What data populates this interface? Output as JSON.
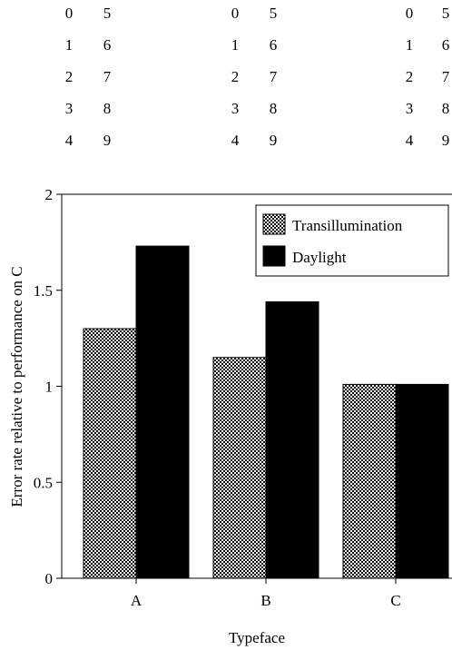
{
  "digit_samples": {
    "left_column": [
      "0",
      "1",
      "2",
      "3",
      "4"
    ],
    "right_column": [
      "5",
      "6",
      "7",
      "8",
      "9"
    ],
    "repeat_count": 3
  },
  "chart_data": {
    "type": "bar",
    "title": "",
    "xlabel": "Typeface",
    "ylabel": "Error rate relative to performance on C",
    "categories": [
      "A",
      "B",
      "C"
    ],
    "series": [
      {
        "name": "Transillumination",
        "values": [
          1.3,
          1.15,
          1.01
        ],
        "pattern": "dotted",
        "color": "#000000"
      },
      {
        "name": "Daylight",
        "values": [
          1.73,
          1.44,
          1.01
        ],
        "pattern": "solid",
        "color": "#000000"
      }
    ],
    "ylim": [
      0,
      2
    ],
    "yticks": [
      "0",
      "0.5",
      "1",
      "1.5",
      "2"
    ],
    "grid": false,
    "legend_position": "top-right"
  }
}
